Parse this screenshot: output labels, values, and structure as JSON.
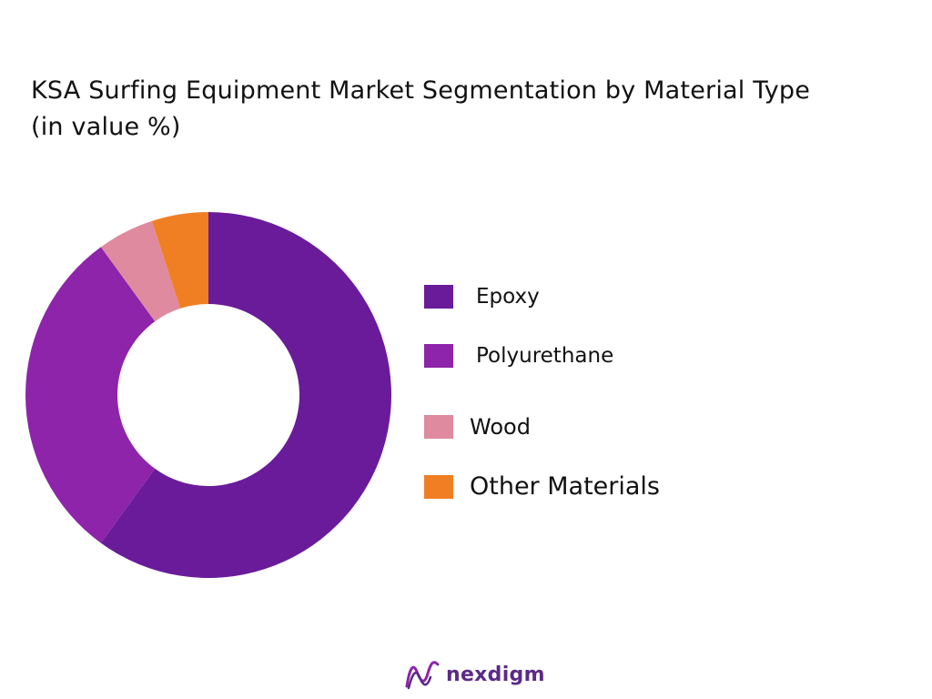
{
  "title_line1": "KSA Surfing Equipment Market Segmentation by Material Type",
  "title_line2": "(in value %)",
  "chart_data": {
    "type": "pie",
    "variant": "donut",
    "title": "KSA Surfing Equipment Market Segmentation by Material Type (in value %)",
    "unit": "%",
    "legend_position": "right",
    "slices": [
      {
        "label": "Epoxy",
        "value": 60,
        "color": "#6a1b9a"
      },
      {
        "label": "Polyurethane",
        "value": 30,
        "color": "#8e24aa"
      },
      {
        "label": "Wood",
        "value": 5,
        "color": "#df8a9e"
      },
      {
        "label": "Other Materials",
        "value": 5,
        "color": "#f07f23"
      }
    ]
  },
  "logo": {
    "text": "nexdigm",
    "color": "#5b2a86",
    "icon": "nexdigm-wave-logo-icon"
  }
}
